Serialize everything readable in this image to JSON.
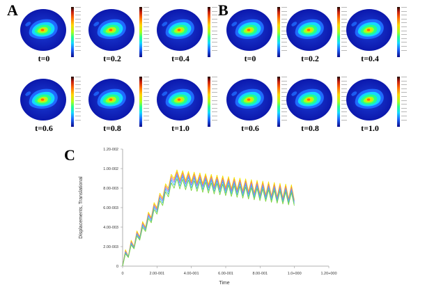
{
  "panels": {
    "a_label": "A",
    "b_label": "B",
    "c_label": "C"
  },
  "panel_a": {
    "times": [
      "t=0",
      "t=0.2",
      "t=0.4",
      "t=0.6",
      "t=0.8",
      "t=1.0"
    ]
  },
  "panel_b": {
    "times": [
      "t=0",
      "t=0.2",
      "t=0.4",
      "t=0.6",
      "t=0.8",
      "t=1.0"
    ]
  },
  "colormap": [
    "#0b0b8c",
    "#1f6bff",
    "#14d8ff",
    "#26ff8c",
    "#a8ff1e",
    "#ffd400",
    "#ff6a00",
    "#c81e10",
    "#1a0a00"
  ],
  "chart_data": {
    "type": "line",
    "xlabel": "Time",
    "ylabel": "Displacements, Translational",
    "xlim": [
      0,
      1.2
    ],
    "ylim": [
      0,
      0.012
    ],
    "x_ticks": [
      0,
      0.2,
      0.4,
      0.6,
      0.8,
      1.0,
      1.2
    ],
    "x_tick_labels": [
      "0",
      "2.00-001",
      "4.00-001",
      "6.00-001",
      "8.00-001",
      "1.0+000",
      "1.20+000"
    ],
    "y_ticks": [
      0,
      0.002,
      0.004,
      0.006,
      0.008,
      0.01,
      0.012
    ],
    "y_tick_labels": [
      "0",
      "2.00-003",
      "4.00-003",
      "6.00-003",
      "8.00-003",
      "1.00-002",
      "1.20-002"
    ],
    "grid": false,
    "series_colors": [
      "#f2e600",
      "#ff8a3c",
      "#8a7cff",
      "#3ab8e8",
      "#7bd33c"
    ],
    "oscillation_period": 0.0333,
    "series": [
      {
        "color": "#f2e600",
        "x": [
          0,
          0.3,
          1.0
        ],
        "upper": [
          0.0012,
          0.0099,
          0.0083
        ],
        "lower": [
          0.0,
          0.009,
          0.0068
        ]
      },
      {
        "color": "#ff8a3c",
        "x": [
          0,
          0.3,
          1.0
        ],
        "upper": [
          0.0011,
          0.0097,
          0.0081
        ],
        "lower": [
          0.0,
          0.0088,
          0.0067
        ]
      },
      {
        "color": "#8a7cff",
        "x": [
          0,
          0.3,
          1.0
        ],
        "upper": [
          0.001,
          0.0095,
          0.0079
        ],
        "lower": [
          0.0,
          0.0086,
          0.0066
        ]
      },
      {
        "color": "#3ab8e8",
        "x": [
          0,
          0.3,
          1.0
        ],
        "upper": [
          0.0009,
          0.0093,
          0.0077
        ],
        "lower": [
          0.0,
          0.0083,
          0.0064
        ]
      },
      {
        "color": "#7bd33c",
        "x": [
          0,
          0.3,
          1.0
        ],
        "upper": [
          0.0008,
          0.009,
          0.0075
        ],
        "lower": [
          0.0,
          0.008,
          0.0062
        ]
      }
    ]
  }
}
